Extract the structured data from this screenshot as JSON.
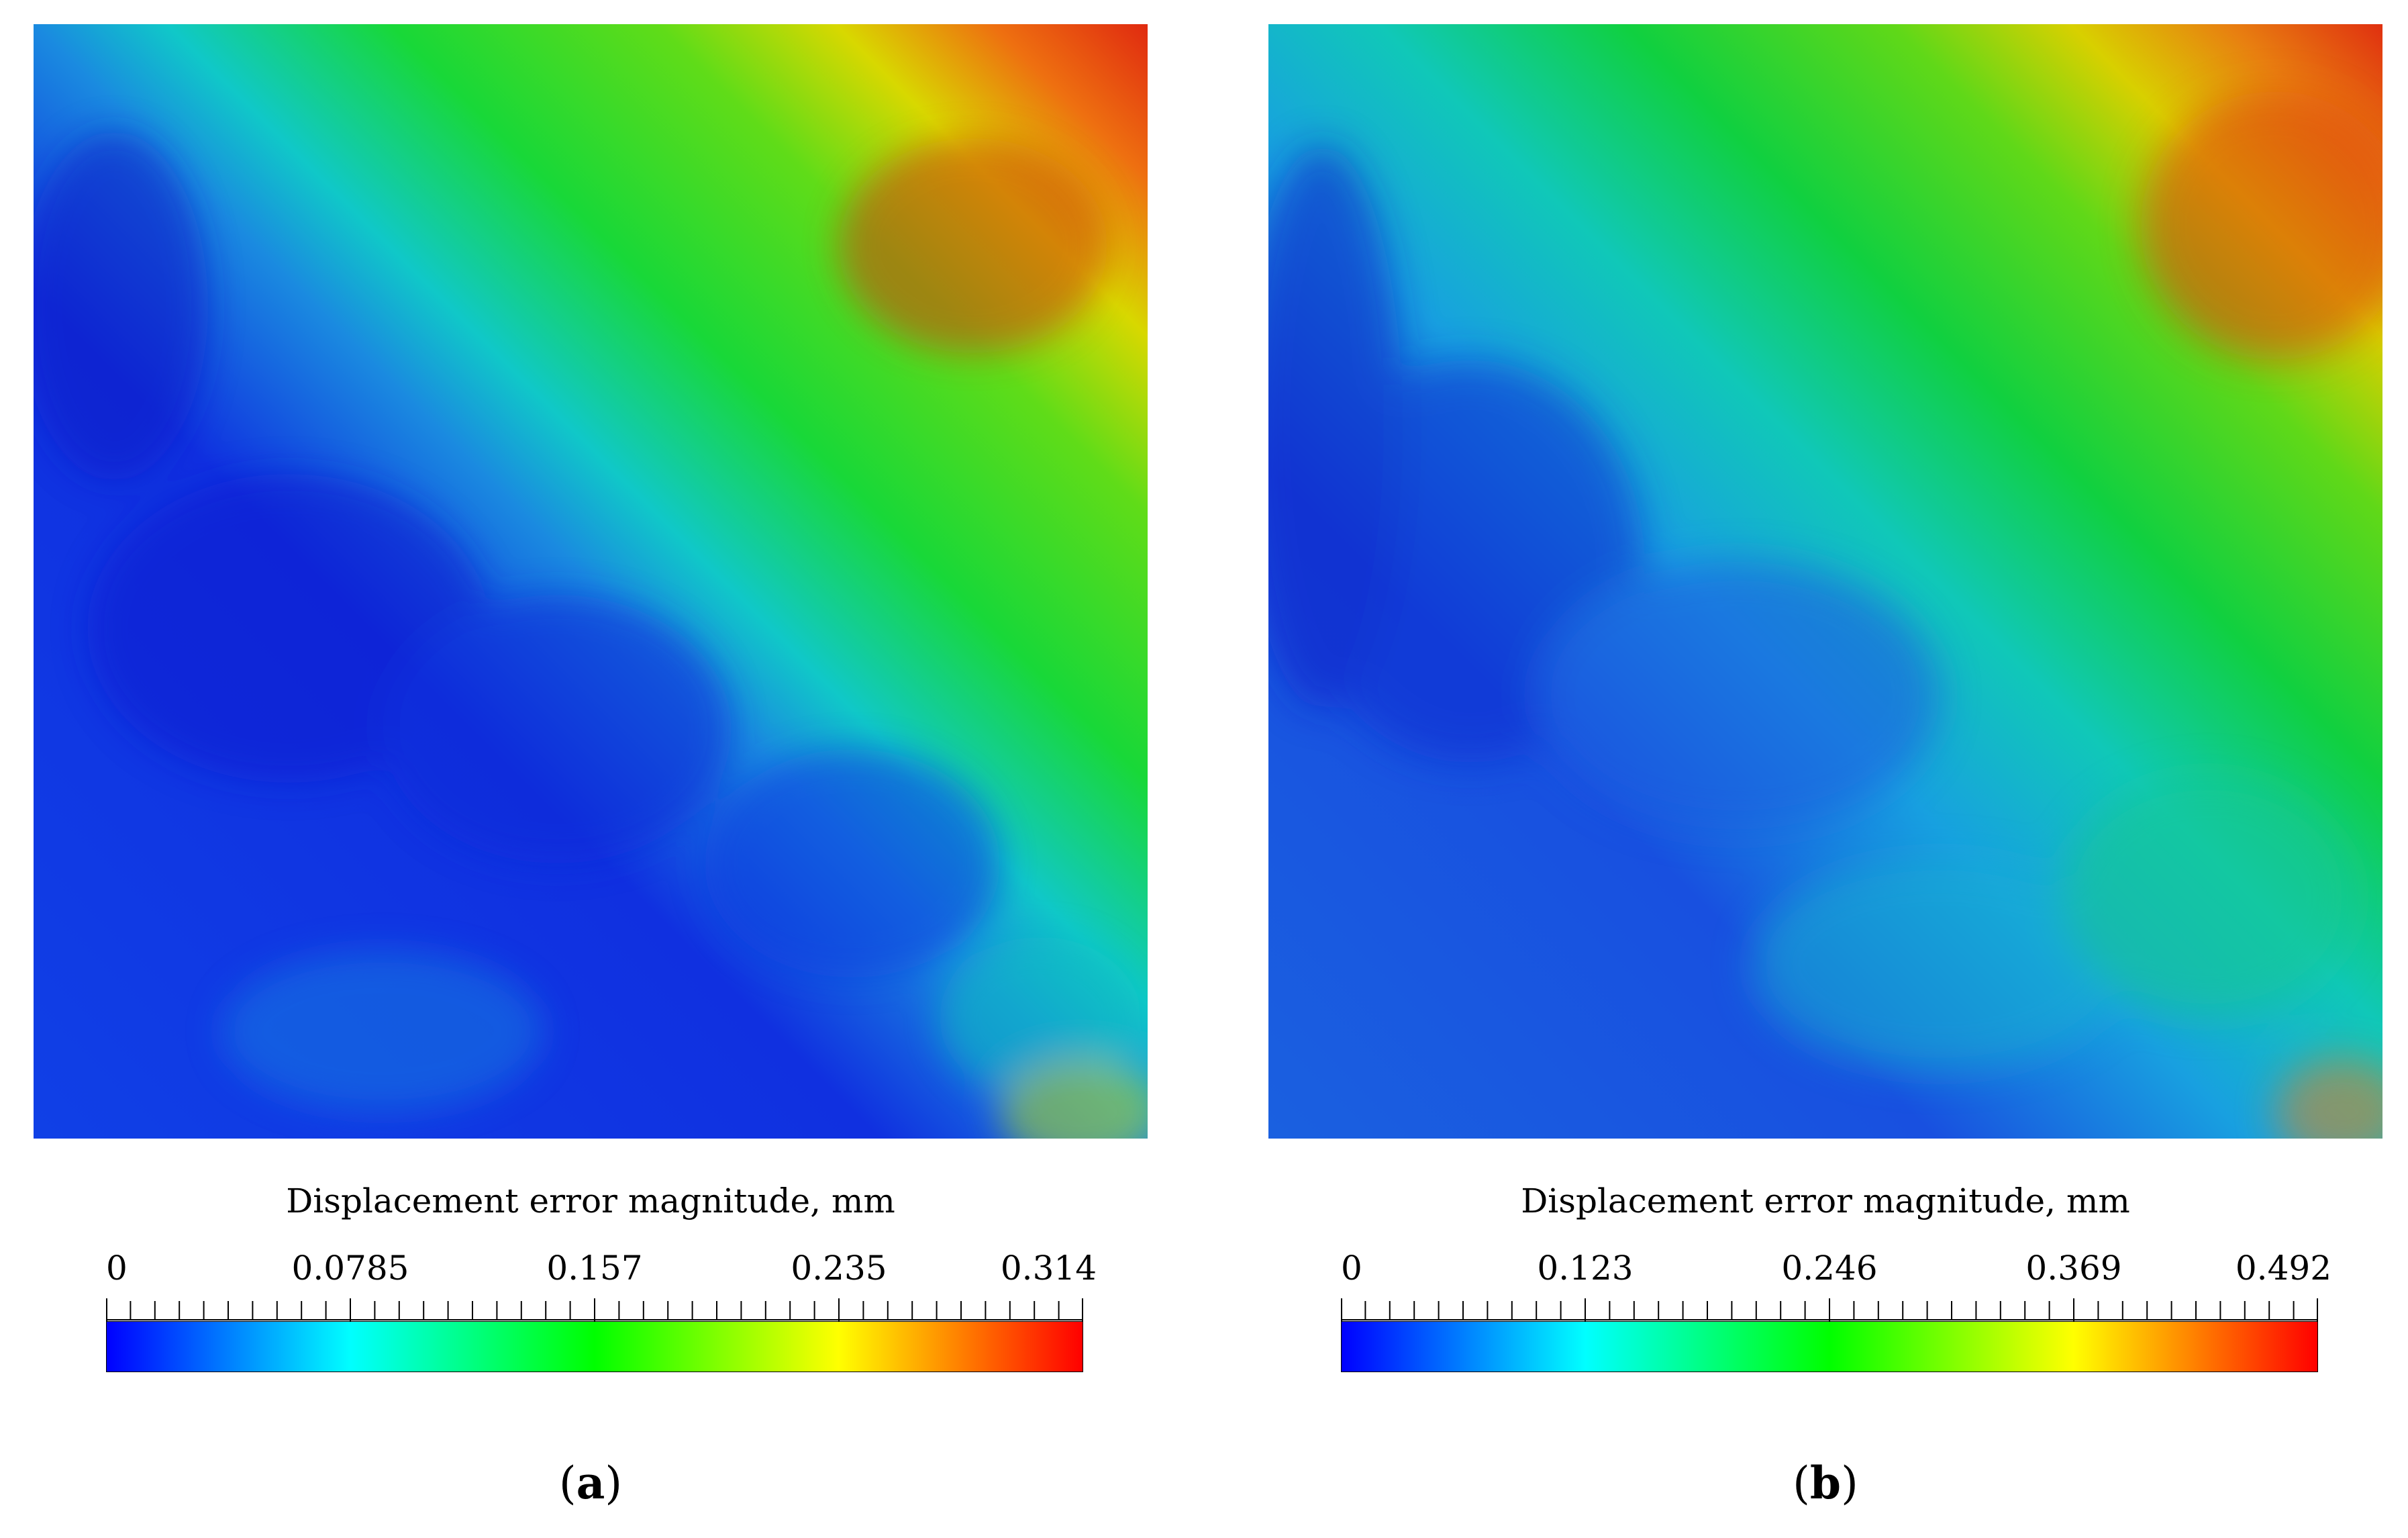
{
  "panels": [
    {
      "id": "a",
      "caption_letter": "a",
      "colorbar": {
        "title": "Displacement error magnitude, mm",
        "min": 0,
        "max": 0.314,
        "tick_labels": [
          "0",
          "0.0785",
          "0.157",
          "0.235",
          "0.314"
        ],
        "colors": [
          "#0000ff",
          "#00ffff",
          "#00ff00",
          "#ffff00",
          "#ff0000"
        ]
      }
    },
    {
      "id": "b",
      "caption_letter": "b",
      "colorbar": {
        "title": "Displacement error magnitude, mm",
        "min": 0,
        "max": 0.492,
        "tick_labels": [
          "0",
          "0.123",
          "0.246",
          "0.369",
          "0.492"
        ],
        "colors": [
          "#0000ff",
          "#00ffff",
          "#00ff00",
          "#ffff00",
          "#ff0000"
        ]
      }
    }
  ]
}
